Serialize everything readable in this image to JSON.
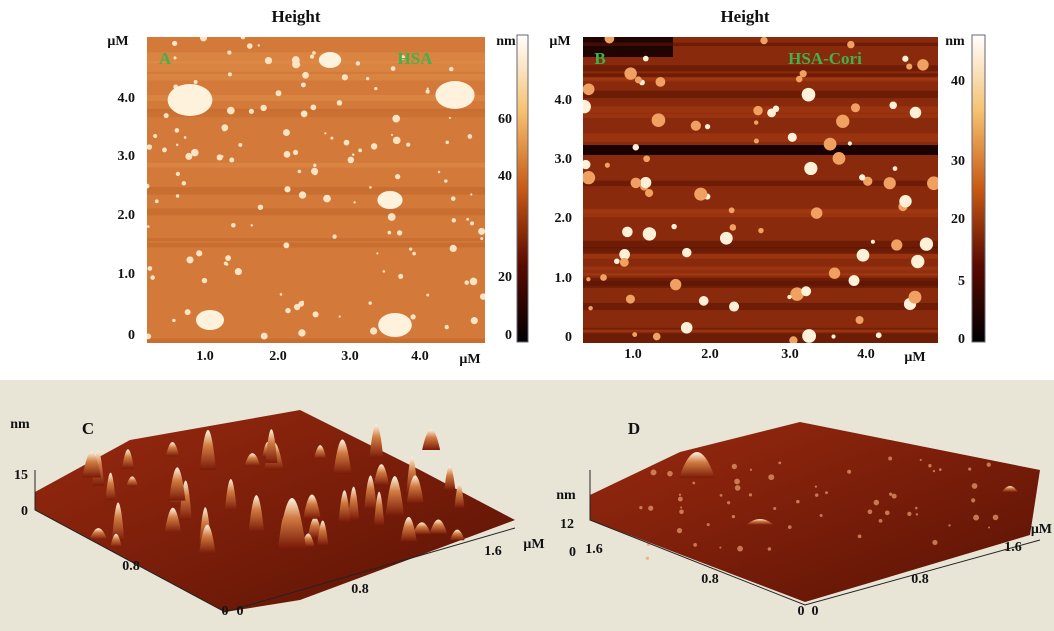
{
  "panels": [
    {
      "title": "Height",
      "letter": "A",
      "sample": "HSA",
      "y_axis": {
        "unit": "μM",
        "labels": [
          "4.0",
          "3.0",
          "2.0",
          "1.0",
          "0"
        ]
      },
      "x_axis": {
        "unit": "μM",
        "labels": [
          "1.0",
          "2.0",
          "3.0",
          "4.0"
        ]
      },
      "colorbar": {
        "unit": "nm",
        "labels": [
          "60",
          "40",
          "20",
          "0"
        ]
      }
    },
    {
      "title": "Height",
      "letter": "B",
      "sample": "HSA-Cori",
      "y_axis": {
        "unit": "μM",
        "labels": [
          "4.0",
          "3.0",
          "2.0",
          "1.0",
          "0"
        ]
      },
      "x_axis": {
        "unit": "μM",
        "labels": [
          "1.0",
          "2.0",
          "3.0",
          "4.0"
        ]
      },
      "colorbar": {
        "unit": "nm",
        "labels": [
          "40",
          "30",
          "20",
          "5",
          "0"
        ]
      }
    }
  ],
  "surfaces": [
    {
      "letter": "C",
      "z_axis": {
        "unit": "nm",
        "labels": [
          "15",
          "0"
        ]
      },
      "left_axis": {
        "labels": [
          "0.8",
          "0"
        ]
      },
      "right_axis": {
        "unit": "μM",
        "labels": [
          "0",
          "0.8",
          "1.6"
        ]
      }
    },
    {
      "letter": "D",
      "z_axis": {
        "unit": "nm",
        "labels": [
          "12",
          "0"
        ]
      },
      "left_axis": {
        "labels": [
          "1.6",
          "0.8",
          "0"
        ]
      },
      "right_axis": {
        "unit": "μM",
        "labels": [
          "0",
          "0.8",
          "1.6"
        ]
      }
    }
  ]
}
